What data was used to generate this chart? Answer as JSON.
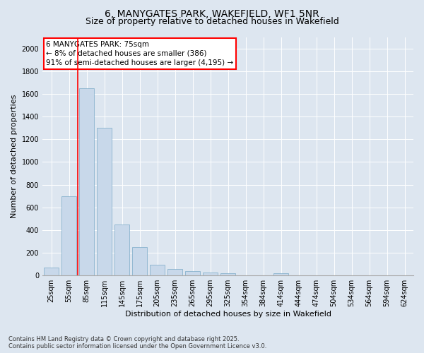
{
  "title_line1": "6, MANYGATES PARK, WAKEFIELD, WF1 5NR",
  "title_line2": "Size of property relative to detached houses in Wakefield",
  "xlabel": "Distribution of detached houses by size in Wakefield",
  "ylabel": "Number of detached properties",
  "categories": [
    "25sqm",
    "55sqm",
    "85sqm",
    "115sqm",
    "145sqm",
    "175sqm",
    "205sqm",
    "235sqm",
    "265sqm",
    "295sqm",
    "325sqm",
    "354sqm",
    "384sqm",
    "414sqm",
    "444sqm",
    "474sqm",
    "504sqm",
    "534sqm",
    "564sqm",
    "594sqm",
    "624sqm"
  ],
  "values": [
    70,
    700,
    1650,
    1300,
    450,
    250,
    95,
    55,
    38,
    25,
    20,
    0,
    0,
    20,
    0,
    0,
    0,
    0,
    0,
    0,
    0
  ],
  "bar_color": "#c8d8ea",
  "bar_edge_color": "#7aaac8",
  "vline_x": 1.5,
  "vline_color": "red",
  "annotation_title": "6 MANYGATES PARK: 75sqm",
  "annotation_line1": "← 8% of detached houses are smaller (386)",
  "annotation_line2": "91% of semi-detached houses are larger (4,195) →",
  "annotation_box_facecolor": "white",
  "annotation_box_edgecolor": "red",
  "ylim": [
    0,
    2100
  ],
  "yticks": [
    0,
    200,
    400,
    600,
    800,
    1000,
    1200,
    1400,
    1600,
    1800,
    2000
  ],
  "background_color": "#dde6f0",
  "plot_background": "#dde6f0",
  "grid_color": "white",
  "footer_line1": "Contains HM Land Registry data © Crown copyright and database right 2025.",
  "footer_line2": "Contains public sector information licensed under the Open Government Licence v3.0.",
  "title_fontsize": 10,
  "subtitle_fontsize": 9,
  "ylabel_fontsize": 8,
  "xlabel_fontsize": 8,
  "tick_fontsize": 7,
  "annotation_fontsize": 7.5,
  "footer_fontsize": 6
}
